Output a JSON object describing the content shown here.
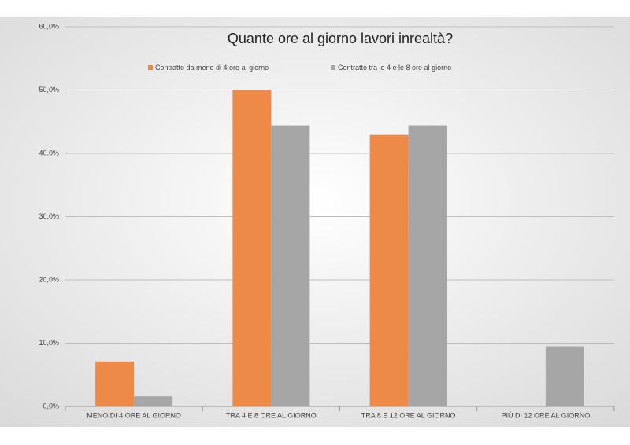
{
  "chart_data": {
    "type": "bar",
    "title": "Quante ore al giorno lavori inrealtà?",
    "categories": [
      "MENO DI 4 ORE AL GIORNO",
      "TRA 4 E 8 ORE AL GIORNO",
      "TRA 8 E 12 ORE AL GIORNO",
      "PIÙ DI 12 ORE AL GIORNO"
    ],
    "series": [
      {
        "name": "Contratto da meno di 4 ore al giorno",
        "color": "#ee8a47",
        "values": [
          7.1,
          50.0,
          42.9,
          0
        ]
      },
      {
        "name": "Contratto tra le 4 e le 8 ore al giorno",
        "color": "#a6a6a6",
        "values": [
          1.6,
          44.4,
          44.4,
          9.5
        ]
      }
    ],
    "ylim": [
      0,
      60
    ],
    "yticks": [
      {
        "value": 0,
        "label": "0,0%"
      },
      {
        "value": 10,
        "label": "10,0%"
      },
      {
        "value": 20,
        "label": "20,0%"
      },
      {
        "value": 30,
        "label": "30,0%"
      },
      {
        "value": 40,
        "label": "40,0%"
      },
      {
        "value": 50,
        "label": "50,0%"
      },
      {
        "value": 60,
        "label": "60,0%"
      }
    ],
    "grid": true,
    "legend": "top"
  }
}
